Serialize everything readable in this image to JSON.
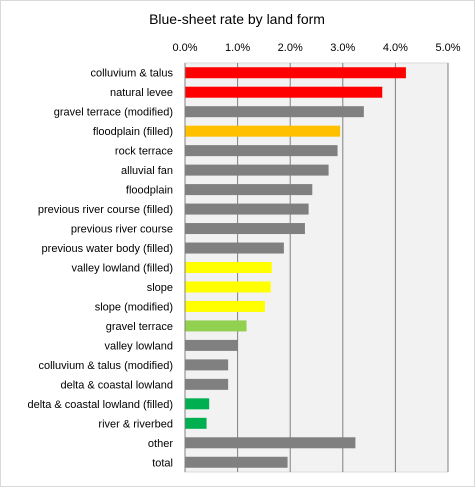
{
  "chart_data": {
    "type": "bar",
    "orientation": "horizontal",
    "title": "Blue-sheet rate by land form",
    "xlim": [
      0,
      5.0
    ],
    "x_ticks": [
      "0.0%",
      "1.0%",
      "2.0%",
      "3.0%",
      "4.0%",
      "5.0%"
    ],
    "x_tick_values": [
      0,
      1,
      2,
      3,
      4,
      5
    ],
    "x_axis_position": "top",
    "grid": "vertical",
    "plot_background": "#f2f2f2",
    "categories": [
      "colluvium & talus",
      "natural levee",
      "gravel terrace (modified)",
      "floodplain (filled)",
      "rock terrace",
      "alluvial fan",
      "floodplain",
      "previous river course (filled)",
      "previous river course",
      "previous water body (filled)",
      "valley lowland (filled)",
      "slope",
      "slope (modified)",
      "gravel terrace",
      "valley lowland",
      "colluvium & talus (modified)",
      "delta & coastal lowland",
      "delta & coastal lowland (filled)",
      "river & riverbed",
      "other",
      "total"
    ],
    "values": [
      4.2,
      3.75,
      3.4,
      2.95,
      2.9,
      2.73,
      2.42,
      2.35,
      2.28,
      1.88,
      1.65,
      1.63,
      1.52,
      1.17,
      1.0,
      0.82,
      0.82,
      0.46,
      0.41,
      3.24,
      1.95
    ],
    "colors": [
      "#ff0000",
      "#ff0000",
      "#808080",
      "#ffc000",
      "#808080",
      "#808080",
      "#808080",
      "#808080",
      "#808080",
      "#808080",
      "#ffff00",
      "#ffff00",
      "#ffff00",
      "#92d050",
      "#808080",
      "#808080",
      "#808080",
      "#00b050",
      "#00b050",
      "#808080",
      "#808080"
    ]
  }
}
